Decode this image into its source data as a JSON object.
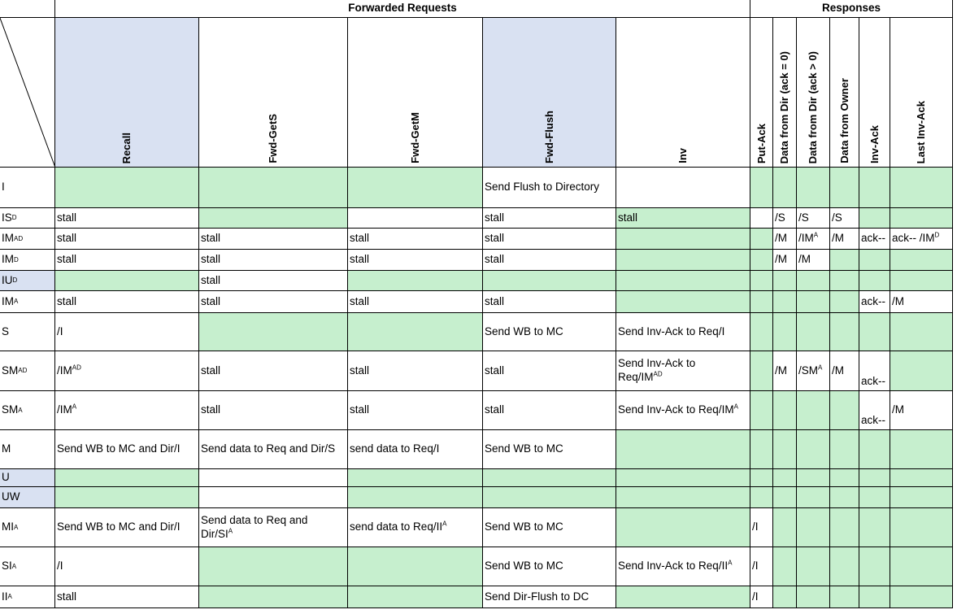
{
  "groups": {
    "forwarded": "Forwarded Requests",
    "responses": "Responses"
  },
  "columns": [
    "Recall",
    "Fwd-GetS",
    "Fwd-GetM",
    "Fwd-Flush",
    "Inv",
    "Put-Ack",
    "Data from Dir (ack = 0)",
    "Data from Dir (ack > 0)",
    "Data from Owner",
    "Inv-Ack",
    "Last Inv-Ack"
  ],
  "rows": [
    {
      "state": "I",
      "sup": "",
      "cells": [
        "",
        "",
        "",
        "Send Flush to Directory",
        "",
        "",
        "",
        "",
        "",
        "",
        ""
      ]
    },
    {
      "state": "IS",
      "sup": "D",
      "cells": [
        "stall",
        "",
        "",
        "stall",
        "stall",
        "",
        "/S",
        "/S",
        "/S",
        "",
        ""
      ]
    },
    {
      "state": "IM",
      "sup": "AD",
      "cells": [
        "stall",
        "stall",
        "stall",
        "stall",
        "",
        "",
        "/M",
        "/IM^A",
        "/M",
        "ack--",
        "ack-- /IM^D"
      ]
    },
    {
      "state": "IM",
      "sup": "D",
      "cells": [
        "stall",
        "stall",
        "stall",
        "stall",
        "",
        "",
        "/M",
        "/M",
        "",
        "",
        ""
      ]
    },
    {
      "state": "IU",
      "sup": "D",
      "cells": [
        "",
        "stall",
        "",
        "",
        "",
        "",
        "",
        "",
        "",
        "",
        ""
      ]
    },
    {
      "state": "IM",
      "sup": "A",
      "cells": [
        "stall",
        "stall",
        "stall",
        "stall",
        "",
        "",
        "",
        "",
        "",
        "ack--",
        "/M"
      ]
    },
    {
      "state": "S",
      "sup": "",
      "cells": [
        "/I",
        "",
        "",
        "Send WB to MC",
        "Send Inv-Ack to Req/I",
        "",
        "",
        "",
        "",
        "",
        ""
      ]
    },
    {
      "state": "SM",
      "sup": "AD",
      "cells": [
        "/IM^AD",
        "stall",
        "stall",
        "stall",
        "Send Inv-Ack to|Req/IM^AD",
        "",
        "/M",
        "/SM^A",
        "/M",
        "ack--",
        ""
      ]
    },
    {
      "state": "SM",
      "sup": "A",
      "cells": [
        "/IM^A",
        "stall",
        "stall",
        "stall",
        "Send Inv-Ack to Req/IM^A",
        "",
        "",
        "",
        "",
        "ack--",
        "/M"
      ]
    },
    {
      "state": "M",
      "sup": "",
      "cells": [
        "Send WB to MC and Dir/I",
        "Send data to Req and Dir/S",
        "send data to Req/I",
        "Send WB to MC",
        "",
        "",
        "",
        "",
        "",
        "",
        ""
      ]
    },
    {
      "state": "U",
      "sup": "",
      "cells": [
        "",
        "",
        "",
        "",
        "",
        "",
        "",
        "",
        "",
        "",
        ""
      ]
    },
    {
      "state": "UW",
      "sup": "",
      "cells": [
        "",
        "",
        "",
        "",
        "",
        "",
        "",
        "",
        "",
        "",
        ""
      ]
    },
    {
      "state": "MI",
      "sup": "A",
      "cells": [
        "Send WB to MC and Dir/I",
        "Send data to Req and|Dir/SI^A",
        "send data to Req/II^A",
        "Send WB to MC",
        "",
        "/I",
        "",
        "",
        "",
        "",
        ""
      ]
    },
    {
      "state": "SI",
      "sup": "A",
      "cells": [
        "/I",
        "",
        "",
        "Send WB to MC",
        "Send Inv-Ack to Req/II^A",
        "/I",
        "",
        "",
        "",
        "",
        ""
      ]
    },
    {
      "state": "II",
      "sup": "A",
      "cells": [
        "stall",
        "",
        "",
        "Send Dir-Flush to DC",
        "",
        "/I",
        "",
        "",
        "",
        "",
        ""
      ]
    }
  ],
  "colors": {
    "green": "#c6efce",
    "blue": "#d9e1f2"
  },
  "shading": [
    "gggg.........",
    "..g...gggg..",
    "....g..g.....",
    "....g...ggg..",
    "b.g.gg.gggggg",
    "....g.gggg...",
    "..gg..gggggg",
    "....g..g...gg",
    "....g.ggggg.",
    ".....gggggggg",
    "bgg.ggggggggg",
    "bgg.ggggggggg",
    ".........gggggg",
    "..gg.......g",
    "..gg.g....ggg"
  ]
}
